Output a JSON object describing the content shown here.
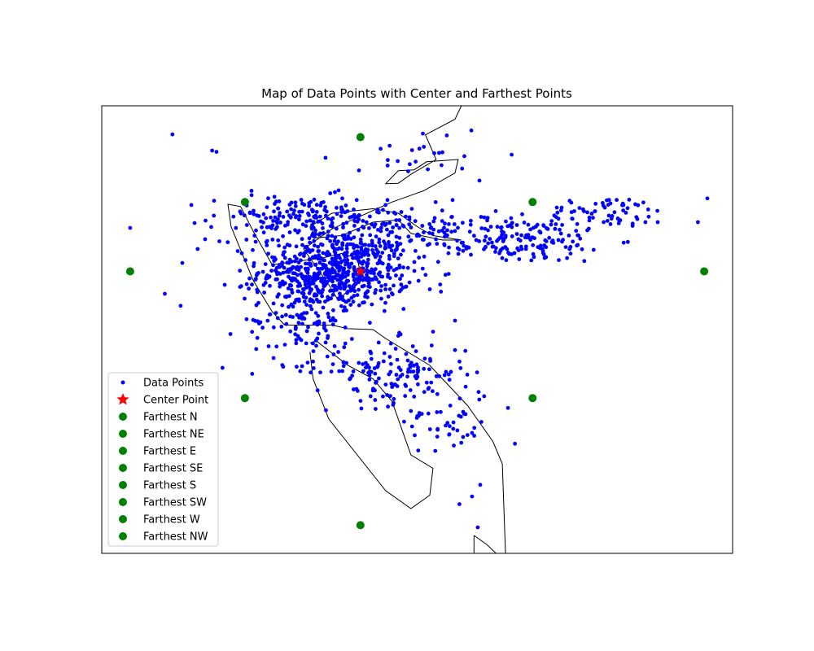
{
  "chart_data": {
    "type": "scatter",
    "title": "Map of Data Points with Center and Farthest Points",
    "xlabel": "",
    "ylabel": "",
    "axes_ticks": false,
    "grid": false,
    "legend": {
      "placement": "lower-left",
      "entries": [
        {
          "label": "Data Points",
          "marker": "dot",
          "color": "#0000ff"
        },
        {
          "label": "Center Point",
          "marker": "star",
          "color": "#ff0000"
        },
        {
          "label": "Farthest N",
          "marker": "circle",
          "color": "#008000"
        },
        {
          "label": "Farthest NE",
          "marker": "circle",
          "color": "#008000"
        },
        {
          "label": "Farthest E",
          "marker": "circle",
          "color": "#008000"
        },
        {
          "label": "Farthest SE",
          "marker": "circle",
          "color": "#008000"
        },
        {
          "label": "Farthest S",
          "marker": "circle",
          "color": "#008000"
        },
        {
          "label": "Farthest SW",
          "marker": "circle",
          "color": "#008000"
        },
        {
          "label": "Farthest W",
          "marker": "circle",
          "color": "#008000"
        },
        {
          "label": "Farthest NW",
          "marker": "circle",
          "color": "#008000"
        }
      ]
    },
    "colors": {
      "data_points": "#0000ff",
      "center": "#ff0000",
      "farthest": "#008000",
      "outline": "#000000"
    },
    "center_point": {
      "x": 0.41,
      "y": 0.63
    },
    "farthest_points": [
      {
        "name": "Farthest N",
        "x": 0.41,
        "y": 0.93
      },
      {
        "name": "Farthest NE",
        "x": 0.683,
        "y": 0.785
      },
      {
        "name": "Farthest E",
        "x": 0.955,
        "y": 0.63
      },
      {
        "name": "Farthest SE",
        "x": 0.683,
        "y": 0.347
      },
      {
        "name": "Farthest S",
        "x": 0.41,
        "y": 0.063
      },
      {
        "name": "Farthest SW",
        "x": 0.227,
        "y": 0.347
      },
      {
        "name": "Farthest W",
        "x": 0.045,
        "y": 0.63
      },
      {
        "name": "Farthest NW",
        "x": 0.227,
        "y": 0.785
      }
    ],
    "clusters": [
      {
        "cx": 0.37,
        "cy": 0.63,
        "sx": 0.06,
        "sy": 0.04,
        "n": 650
      },
      {
        "cx": 0.31,
        "cy": 0.75,
        "sx": 0.07,
        "sy": 0.025,
        "n": 150
      },
      {
        "cx": 0.45,
        "cy": 0.73,
        "sx": 0.09,
        "sy": 0.03,
        "n": 120
      },
      {
        "cx": 0.65,
        "cy": 0.7,
        "sx": 0.08,
        "sy": 0.025,
        "n": 170
      },
      {
        "cx": 0.8,
        "cy": 0.76,
        "sx": 0.05,
        "sy": 0.018,
        "n": 70
      },
      {
        "cx": 0.32,
        "cy": 0.52,
        "sx": 0.04,
        "sy": 0.05,
        "n": 120
      },
      {
        "cx": 0.46,
        "cy": 0.405,
        "sx": 0.06,
        "sy": 0.035,
        "n": 140
      },
      {
        "cx": 0.55,
        "cy": 0.3,
        "sx": 0.035,
        "sy": 0.04,
        "n": 45
      },
      {
        "cx": 0.5,
        "cy": 0.88,
        "sx": 0.06,
        "sy": 0.04,
        "n": 25
      }
    ],
    "outliers": [
      {
        "x": 0.112,
        "y": 0.936
      },
      {
        "x": 0.175,
        "y": 0.9
      },
      {
        "x": 0.182,
        "y": 0.897
      },
      {
        "x": 0.045,
        "y": 0.727
      },
      {
        "x": 0.1,
        "y": 0.58
      },
      {
        "x": 0.125,
        "y": 0.553
      },
      {
        "x": 0.152,
        "y": 0.68
      },
      {
        "x": 0.195,
        "y": 0.6
      },
      {
        "x": 0.204,
        "y": 0.49
      },
      {
        "x": 0.54,
        "y": 0.896
      },
      {
        "x": 0.96,
        "y": 0.793
      },
      {
        "x": 0.644,
        "y": 0.325
      },
      {
        "x": 0.655,
        "y": 0.245
      },
      {
        "x": 0.6,
        "y": 0.153
      },
      {
        "x": 0.587,
        "y": 0.127
      },
      {
        "x": 0.596,
        "y": 0.058
      },
      {
        "x": 0.49,
        "y": 0.318
      },
      {
        "x": 0.945,
        "y": 0.74
      },
      {
        "x": 0.52,
        "y": 0.59
      },
      {
        "x": 0.56,
        "y": 0.52
      },
      {
        "x": 0.567,
        "y": 0.11
      }
    ],
    "outlines": [
      [
        [
          0.57,
          1.0
        ],
        [
          0.56,
          0.97
        ],
        [
          0.513,
          0.935
        ],
        [
          0.53,
          0.88
        ],
        [
          0.49,
          0.847
        ],
        [
          0.47,
          0.827
        ],
        [
          0.45,
          0.826
        ],
        [
          0.47,
          0.855
        ],
        [
          0.495,
          0.857
        ],
        [
          0.515,
          0.875
        ],
        [
          0.565,
          0.88
        ],
        [
          0.56,
          0.85
        ],
        [
          0.51,
          0.81
        ],
        [
          0.46,
          0.785
        ],
        [
          0.365,
          0.725
        ],
        [
          0.32,
          0.68
        ],
        [
          0.36,
          0.6
        ],
        [
          0.375,
          0.565
        ],
        [
          0.385,
          0.58
        ],
        [
          0.4,
          0.595
        ],
        [
          0.41,
          0.625
        ],
        [
          0.405,
          0.66
        ],
        [
          0.38,
          0.67
        ],
        [
          0.35,
          0.66
        ],
        [
          0.27,
          0.645
        ],
        [
          0.24,
          0.72
        ],
        [
          0.22,
          0.775
        ],
        [
          0.2,
          0.78
        ],
        [
          0.205,
          0.73
        ],
        [
          0.24,
          0.61
        ],
        [
          0.27,
          0.54
        ],
        [
          0.29,
          0.51
        ],
        [
          0.365,
          0.51
        ],
        [
          0.39,
          0.502
        ],
        [
          0.43,
          0.5
        ],
        [
          0.45,
          0.48
        ],
        [
          0.52,
          0.42
        ],
        [
          0.58,
          0.33
        ],
        [
          0.62,
          0.25
        ],
        [
          0.635,
          0.2
        ],
        [
          0.64,
          0.0
        ]
      ],
      [
        [
          0.57,
          0.7
        ],
        [
          0.525,
          0.71
        ],
        [
          0.5,
          0.73
        ],
        [
          0.47,
          0.76
        ],
        [
          0.43,
          0.77
        ],
        [
          0.365,
          0.76
        ],
        [
          0.33,
          0.73
        ],
        [
          0.34,
          0.705
        ],
        [
          0.38,
          0.71
        ],
        [
          0.43,
          0.74
        ],
        [
          0.47,
          0.745
        ],
        [
          0.49,
          0.715
        ],
        [
          0.54,
          0.7
        ],
        [
          0.57,
          0.7
        ]
      ],
      [
        [
          0.33,
          0.47
        ],
        [
          0.34,
          0.475
        ],
        [
          0.39,
          0.42
        ],
        [
          0.43,
          0.39
        ],
        [
          0.46,
          0.34
        ],
        [
          0.49,
          0.22
        ],
        [
          0.525,
          0.19
        ],
        [
          0.52,
          0.13
        ],
        [
          0.49,
          0.1
        ],
        [
          0.45,
          0.14
        ],
        [
          0.36,
          0.3
        ],
        [
          0.335,
          0.39
        ],
        [
          0.33,
          0.45
        ]
      ],
      [
        [
          0.59,
          0.04
        ],
        [
          0.61,
          0.02
        ],
        [
          0.625,
          0.0
        ],
        [
          0.59,
          0.0
        ],
        [
          0.59,
          0.04
        ]
      ]
    ]
  }
}
